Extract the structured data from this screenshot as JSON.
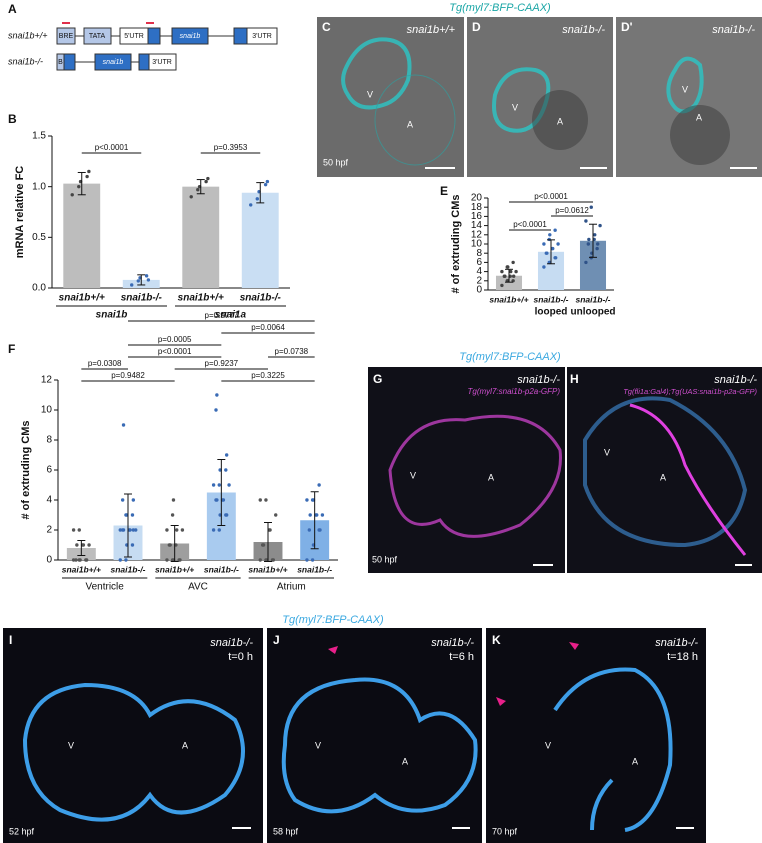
{
  "panel_a": {
    "label": "A",
    "constructs": [
      {
        "genotype": "snai1b+/+",
        "elements": [
          "BRE",
          "TATA",
          "5'UTR",
          "snai1b",
          "3'UTR"
        ]
      },
      {
        "genotype": "snai1b-/-",
        "elements": [
          "B",
          "snai1b",
          "3'UTR"
        ]
      }
    ]
  },
  "images_top": {
    "title": "Tg(myl7:BFP-CAAX)",
    "panels": [
      {
        "label": "C",
        "genotype": "snai1b+/+",
        "stage": "50 hpf",
        "regions": [
          "V",
          "A"
        ]
      },
      {
        "label": "D",
        "genotype": "snai1b-/-",
        "regions": [
          "V",
          "A"
        ]
      },
      {
        "label": "D'",
        "genotype": "snai1b-/-",
        "regions": [
          "V",
          "A"
        ]
      }
    ]
  },
  "images_mid": {
    "title": "Tg(myl7:BFP-CAAX)",
    "panels": [
      {
        "label": "G",
        "genotype": "snai1b-/-",
        "transgene": "Tg(myl7:snai1b-p2a-GFP)",
        "stage": "50 hpf",
        "regions": [
          "V",
          "A"
        ]
      },
      {
        "label": "H",
        "genotype": "snai1b-/-",
        "transgene": "Tg(fli1a:Gal4);Tg(UAS:snai1b-p2a-GFP)",
        "regions": [
          "V",
          "A"
        ]
      }
    ]
  },
  "images_bottom": {
    "title": "Tg(myl7:BFP-CAAX)",
    "panels": [
      {
        "label": "I",
        "genotype": "snai1b-/-",
        "time": "t=0 h",
        "stage": "52 hpf",
        "regions": [
          "V",
          "A"
        ]
      },
      {
        "label": "J",
        "genotype": "snai1b-/-",
        "time": "t=6 h",
        "stage": "58 hpf",
        "regions": [
          "V",
          "A"
        ]
      },
      {
        "label": "K",
        "genotype": "snai1b-/-",
        "time": "t=18 h",
        "stage": "70 hpf",
        "regions": [
          "V",
          "A"
        ]
      }
    ]
  },
  "chart_data": [
    {
      "type": "bar",
      "label": "B",
      "ylabel": "mRNA relative FC",
      "categories": [
        "snai1b+/+",
        "snai1b-/-",
        "snai1b+/+",
        "snai1b-/-"
      ],
      "groups": [
        "snai1b",
        "snai1a"
      ],
      "values": [
        1.03,
        0.08,
        1.0,
        0.94
      ],
      "errors": [
        0.11,
        0.05,
        0.07,
        0.1
      ],
      "colors": [
        "#bdbdbd",
        "#c9def3",
        "#bdbdbd",
        "#c9def3"
      ],
      "point_colors": [
        "#444444",
        "#3a6bb5",
        "#444444",
        "#3a6bb5"
      ],
      "points": [
        [
          0.92,
          1.0,
          1.05,
          1.1,
          1.15
        ],
        [
          0.03,
          0.07,
          0.1,
          0.12,
          0.08
        ],
        [
          0.9,
          0.97,
          1.0,
          1.05,
          1.08
        ],
        [
          0.82,
          0.88,
          0.95,
          1.02,
          1.05
        ]
      ],
      "ylim": [
        0,
        1.5
      ],
      "yticks": [
        {
          "value": 0,
          "label": "0.0"
        },
        {
          "value": 0.5,
          "label": "0.5"
        },
        {
          "value": 1,
          "label": "1.0"
        },
        {
          "value": 1.5,
          "label": "1.5"
        }
      ],
      "comparisons": [
        {
          "label": "p<0.0001",
          "between": [
            0,
            1
          ]
        },
        {
          "label": "p=0.3953",
          "between": [
            2,
            3
          ]
        }
      ]
    },
    {
      "type": "bar",
      "label": "E",
      "ylabel": "# of extruding CMs",
      "categories": [
        "snai1b+/+",
        "snai1b-/-",
        "snai1b-/-"
      ],
      "sublabels": [
        null,
        "looped",
        "unlooped"
      ],
      "values": [
        3.1,
        8.3,
        10.7
      ],
      "errors": [
        1.4,
        2.6,
        3.6
      ],
      "colors": [
        "#bdbdbd",
        "#c6dcf2",
        "#6f8fb3"
      ],
      "point_colors": [
        "#444444",
        "#3a6bb5",
        "#2f5288"
      ],
      "points": [
        [
          1,
          2,
          2,
          2,
          3,
          3,
          3,
          3,
          4,
          4,
          4,
          5,
          5,
          6
        ],
        [
          5,
          6,
          6,
          7,
          7,
          8,
          8,
          9,
          9,
          10,
          10,
          11,
          12,
          13
        ],
        [
          6,
          7,
          8,
          9,
          10,
          10,
          11,
          11,
          12,
          14,
          15,
          18
        ]
      ],
      "ylim": [
        0,
        20
      ],
      "yticks": [
        0,
        2,
        4,
        6,
        8,
        10,
        12,
        14,
        16,
        18,
        20
      ],
      "comparisons": [
        {
          "label": "p<0.0001",
          "between": [
            0,
            1
          ]
        },
        {
          "label": "p=0.0612",
          "between": [
            1,
            2
          ]
        },
        {
          "label": "p<0.0001",
          "between": [
            0,
            2
          ]
        }
      ]
    },
    {
      "type": "bar",
      "label": "F",
      "ylabel": "# of extruding CMs",
      "categories": [
        "snai1b+/+",
        "snai1b-/-",
        "snai1b+/+",
        "snai1b-/-",
        "snai1b+/+",
        "snai1b-/-"
      ],
      "groups": [
        "Ventricle",
        "AVC",
        "Atrium"
      ],
      "values": [
        0.8,
        2.3,
        1.1,
        4.5,
        1.2,
        2.65
      ],
      "errors": [
        0.5,
        2.1,
        1.2,
        2.2,
        1.3,
        1.9
      ],
      "colors": [
        "#bdbdbd",
        "#c6dcf2",
        "#9e9e9e",
        "#a9cbef",
        "#8c8c8c",
        "#7fb0e6"
      ],
      "point_colors": [
        "#555555",
        "#3a6bb5",
        "#555555",
        "#3a6bb5",
        "#555555",
        "#3a6bb5"
      ],
      "points": [
        [
          0,
          0,
          0,
          0,
          0,
          0,
          1,
          1,
          1,
          1,
          2,
          2
        ],
        [
          0,
          0,
          1,
          1,
          2,
          2,
          2,
          2,
          2,
          2,
          2,
          3,
          3,
          3,
          4,
          4,
          9
        ],
        [
          0,
          0,
          0,
          0,
          0,
          1,
          1,
          1,
          2,
          2,
          2,
          3,
          4
        ],
        [
          2,
          2,
          3,
          3,
          3,
          4,
          4,
          4,
          4,
          5,
          5,
          5,
          6,
          6,
          7,
          10,
          11
        ],
        [
          0,
          0,
          0,
          0,
          0,
          1,
          1,
          2,
          2,
          3,
          4,
          4
        ],
        [
          0,
          0,
          1,
          2,
          2,
          2,
          3,
          3,
          3,
          3,
          4,
          4,
          4,
          5
        ]
      ],
      "ylim": [
        0,
        12
      ],
      "yticks": [
        0,
        2,
        4,
        6,
        8,
        10,
        12
      ],
      "comparisons": [
        {
          "label": "p=0.9482",
          "between": [
            0,
            2
          ]
        },
        {
          "label": "p=0.3225",
          "between": [
            3,
            5
          ]
        },
        {
          "label": "p=0.0308",
          "between": [
            0,
            1
          ]
        },
        {
          "label": "p=0.9237",
          "between": [
            2,
            4
          ]
        },
        {
          "label": "p<0.0001",
          "between": [
            1,
            3
          ]
        },
        {
          "label": "p=0.0738",
          "between": [
            4,
            5
          ]
        },
        {
          "label": "p=0.0005",
          "between": [
            1,
            3
          ]
        },
        {
          "label": "p=0.0064",
          "between": [
            3,
            5
          ]
        },
        {
          "label": "p=0.9777",
          "between": [
            1,
            5
          ]
        }
      ]
    }
  ]
}
